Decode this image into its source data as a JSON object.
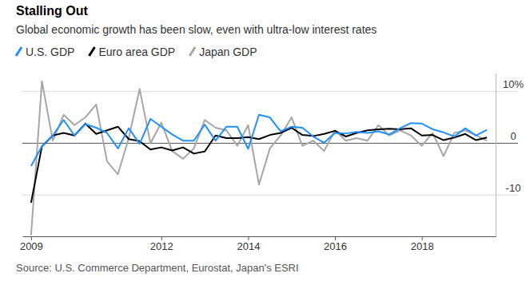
{
  "chart_data": {
    "type": "line",
    "title": "Stalling Out",
    "subtitle": "Global economic growth has been slow, even with ultra-low interest rates",
    "source": "Source: U.S. Commerce Department, Eurostat, Japan's ESRI",
    "x": [
      2009,
      2009.25,
      2009.5,
      2009.75,
      2010,
      2010.25,
      2010.5,
      2010.75,
      2011,
      2011.25,
      2011.5,
      2011.75,
      2012,
      2012.25,
      2012.5,
      2012.75,
      2013,
      2013.25,
      2013.5,
      2013.75,
      2014,
      2014.25,
      2014.5,
      2014.75,
      2015,
      2015.25,
      2015.5,
      2015.75,
      2016,
      2016.25,
      2016.5,
      2016.75,
      2017,
      2017.25,
      2017.5,
      2017.75,
      2018,
      2018.25,
      2018.5,
      2018.75,
      2019,
      2019.25,
      2019.5
    ],
    "series": [
      {
        "name": "U.S. GDP",
        "color": "#1e90ff",
        "values": [
          -4.4,
          -0.6,
          1.5,
          4.5,
          1.5,
          3.7,
          3.0,
          2.0,
          -1.0,
          2.9,
          -0.1,
          4.7,
          3.2,
          1.7,
          0.5,
          0.5,
          3.6,
          0.5,
          3.2,
          3.2,
          -1.1,
          5.5,
          5.0,
          2.3,
          3.2,
          3.0,
          1.3,
          0.1,
          2.0,
          1.9,
          2.2,
          2.0,
          2.3,
          1.7,
          2.9,
          3.9,
          3.8,
          2.7,
          2.1,
          1.3,
          2.9,
          1.5,
          2.6
        ]
      },
      {
        "name": "Euro area GDP",
        "color": "#000000",
        "values": [
          -11.5,
          -0.6,
          1.5,
          2.0,
          1.5,
          3.8,
          1.8,
          2.5,
          3.2,
          0.8,
          0.4,
          -1.2,
          -0.8,
          -1.4,
          -0.8,
          -2.0,
          -1.6,
          1.5,
          1.0,
          1.0,
          1.2,
          0.8,
          1.6,
          2.0,
          3.0,
          1.6,
          1.4,
          1.8,
          2.4,
          1.3,
          2.0,
          2.5,
          2.7,
          2.8,
          2.7,
          2.9,
          1.5,
          1.6,
          0.6,
          1.1,
          1.8,
          0.6,
          1.1
        ]
      },
      {
        "name": "Japan GDP",
        "color": "#a6a6a6",
        "values": [
          -17.8,
          12.0,
          0.5,
          5.5,
          3.5,
          5.0,
          7.5,
          -3.5,
          -6.0,
          1.0,
          10.5,
          0.0,
          4.0,
          -1.5,
          -3.0,
          -1.0,
          4.5,
          3.0,
          2.5,
          -0.5,
          3.5,
          -8.0,
          -1.0,
          1.5,
          5.0,
          -0.5,
          0.5,
          -1.5,
          2.5,
          0.5,
          1.0,
          0.5,
          3.5,
          1.5,
          2.5,
          1.5,
          -0.5,
          2.0,
          -2.5,
          2.0,
          2.5,
          1.5,
          0.5
        ]
      }
    ],
    "xlim": [
      2008.8,
      2019.7
    ],
    "xticks": [
      2009,
      2012,
      2014,
      2016,
      2018
    ],
    "ylim": [
      -18,
      13.5
    ],
    "yticks": [
      -10,
      0,
      {
        "value": 10,
        "label": "10%"
      }
    ],
    "grid": true,
    "legend": "top-left"
  }
}
